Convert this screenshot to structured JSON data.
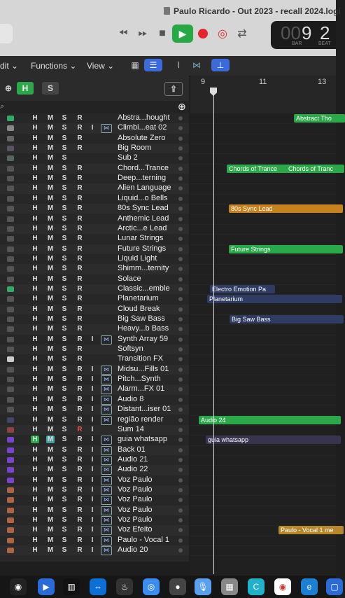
{
  "window": {
    "title": "Paulo Ricardo - Out 2023 - recall 2024.logi"
  },
  "lcd": {
    "bar": "9",
    "beat": "2",
    "bar_ghost": "00",
    "bar_label": "BAR",
    "beat_label": "BEAT"
  },
  "menus": {
    "edit": "dit",
    "functions": "Functions",
    "view": "View"
  },
  "header_buttons": {
    "h": "H",
    "s": "S"
  },
  "ruler": {
    "bars": [
      "9",
      "11",
      "13"
    ]
  },
  "tracks": [
    {
      "name": "Abstra...hought",
      "h": "H",
      "m": "M",
      "s": "S",
      "r": "R",
      "i": "",
      "flex": false,
      "icon_color": "#3a6"
    },
    {
      "name": "Climbi...eat 02",
      "h": "H",
      "m": "M",
      "s": "S",
      "r": "R",
      "i": "I",
      "flex": true,
      "icon_color": "#888"
    },
    {
      "name": "Absolute Zero",
      "h": "H",
      "m": "M",
      "s": "S",
      "r": "R",
      "i": "",
      "flex": false,
      "icon_color": "#666"
    },
    {
      "name": "Big Room",
      "h": "H",
      "m": "M",
      "s": "S",
      "r": "R",
      "i": "",
      "flex": false,
      "icon_color": "#556"
    },
    {
      "name": "Sub 2",
      "h": "H",
      "m": "M",
      "s": "S",
      "r": "",
      "i": "",
      "flex": false,
      "icon_color": "#566"
    },
    {
      "name": "Chord...Trance",
      "h": "H",
      "m": "M",
      "s": "S",
      "r": "R",
      "i": "",
      "flex": false,
      "icon_color": "#555"
    },
    {
      "name": "Deep...terning",
      "h": "H",
      "m": "M",
      "s": "S",
      "r": "R",
      "i": "",
      "flex": false,
      "icon_color": "#555"
    },
    {
      "name": "Alien Language",
      "h": "H",
      "m": "M",
      "s": "S",
      "r": "R",
      "i": "",
      "flex": false,
      "icon_color": "#555"
    },
    {
      "name": "Liquid...o Bells",
      "h": "H",
      "m": "M",
      "s": "S",
      "r": "R",
      "i": "",
      "flex": false,
      "icon_color": "#555"
    },
    {
      "name": "80s Sync Lead",
      "h": "H",
      "m": "M",
      "s": "S",
      "r": "R",
      "i": "",
      "flex": false,
      "icon_color": "#555"
    },
    {
      "name": "Anthemic Lead",
      "h": "H",
      "m": "M",
      "s": "S",
      "r": "R",
      "i": "",
      "flex": false,
      "icon_color": "#555"
    },
    {
      "name": "Arctic...e Lead",
      "h": "H",
      "m": "M",
      "s": "S",
      "r": "R",
      "i": "",
      "flex": false,
      "icon_color": "#555"
    },
    {
      "name": "Lunar Strings",
      "h": "H",
      "m": "M",
      "s": "S",
      "r": "R",
      "i": "",
      "flex": false,
      "icon_color": "#555"
    },
    {
      "name": "Future Strings",
      "h": "H",
      "m": "M",
      "s": "S",
      "r": "R",
      "i": "",
      "flex": false,
      "icon_color": "#555"
    },
    {
      "name": "Liquid Light",
      "h": "H",
      "m": "M",
      "s": "S",
      "r": "R",
      "i": "",
      "flex": false,
      "icon_color": "#555"
    },
    {
      "name": "Shimm...ternity",
      "h": "H",
      "m": "M",
      "s": "S",
      "r": "R",
      "i": "",
      "flex": false,
      "icon_color": "#555"
    },
    {
      "name": "Solace",
      "h": "H",
      "m": "M",
      "s": "S",
      "r": "R",
      "i": "",
      "flex": false,
      "icon_color": "#555"
    },
    {
      "name": "Classic...emble",
      "h": "H",
      "m": "M",
      "s": "S",
      "r": "R",
      "i": "",
      "flex": false,
      "icon_color": "#3a6"
    },
    {
      "name": "Planetarium",
      "h": "H",
      "m": "M",
      "s": "S",
      "r": "R",
      "i": "",
      "flex": false,
      "icon_color": "#555"
    },
    {
      "name": "Cloud Break",
      "h": "H",
      "m": "M",
      "s": "S",
      "r": "R",
      "i": "",
      "flex": false,
      "icon_color": "#555"
    },
    {
      "name": "Big Saw Bass",
      "h": "H",
      "m": "M",
      "s": "S",
      "r": "R",
      "i": "",
      "flex": false,
      "icon_color": "#555"
    },
    {
      "name": "Heavy...b Bass",
      "h": "H",
      "m": "M",
      "s": "S",
      "r": "R",
      "i": "",
      "flex": false,
      "icon_color": "#555"
    },
    {
      "name": "Synth Array 59",
      "h": "H",
      "m": "M",
      "s": "S",
      "r": "R",
      "i": "I",
      "flex": true,
      "icon_color": "#555"
    },
    {
      "name": "Softsyn",
      "h": "H",
      "m": "M",
      "s": "S",
      "r": "R",
      "i": "",
      "flex": false,
      "icon_color": "#555"
    },
    {
      "name": "Transition FX",
      "h": "H",
      "m": "M",
      "s": "S",
      "r": "R",
      "i": "",
      "flex": false,
      "icon_color": "#ccc"
    },
    {
      "name": "Midsu...Fills 01",
      "h": "H",
      "m": "M",
      "s": "S",
      "r": "R",
      "i": "I",
      "flex": true,
      "icon_color": "#555"
    },
    {
      "name": "Pitch...Synth",
      "h": "H",
      "m": "M",
      "s": "S",
      "r": "R",
      "i": "I",
      "flex": true,
      "icon_color": "#555"
    },
    {
      "name": "Alarm...FX 01",
      "h": "H",
      "m": "M",
      "s": "S",
      "r": "R",
      "i": "I",
      "flex": true,
      "icon_color": "#555"
    },
    {
      "name": "Audio 8",
      "h": "H",
      "m": "M",
      "s": "S",
      "r": "R",
      "i": "I",
      "flex": true,
      "icon_color": "#555"
    },
    {
      "name": "Distant...iser 01",
      "h": "H",
      "m": "M",
      "s": "S",
      "r": "R",
      "i": "I",
      "flex": true,
      "icon_color": "#555"
    },
    {
      "name": "região render",
      "h": "H",
      "m": "M",
      "s": "S",
      "r": "R",
      "i": "I",
      "flex": true,
      "icon_color": "#446"
    },
    {
      "name": "Sum 14",
      "h": "H",
      "m": "M",
      "s": "S",
      "r": "R",
      "i": "I",
      "flex": false,
      "icon_color": "#844"
    },
    {
      "name": "guia whatsapp",
      "h": "H",
      "m": "M",
      "s": "S",
      "r": "R",
      "i": "I",
      "flex": true,
      "icon_color": "#74c",
      "highlight": true
    },
    {
      "name": "Back 01",
      "h": "H",
      "m": "M",
      "s": "S",
      "r": "R",
      "i": "I",
      "flex": true,
      "icon_color": "#74c"
    },
    {
      "name": "Audio 21",
      "h": "H",
      "m": "M",
      "s": "S",
      "r": "R",
      "i": "I",
      "flex": true,
      "icon_color": "#74c"
    },
    {
      "name": "Audio 22",
      "h": "H",
      "m": "M",
      "s": "S",
      "r": "R",
      "i": "I",
      "flex": true,
      "icon_color": "#74c"
    },
    {
      "name": "Voz Paulo",
      "h": "H",
      "m": "M",
      "s": "S",
      "r": "R",
      "i": "I",
      "flex": true,
      "icon_color": "#74c"
    },
    {
      "name": "Voz Paulo",
      "h": "H",
      "m": "M",
      "s": "S",
      "r": "R",
      "i": "I",
      "flex": true,
      "icon_color": "#a64"
    },
    {
      "name": "Voz Paulo",
      "h": "H",
      "m": "M",
      "s": "S",
      "r": "R",
      "i": "I",
      "flex": true,
      "icon_color": "#a64"
    },
    {
      "name": "Voz Paulo",
      "h": "H",
      "m": "M",
      "s": "S",
      "r": "R",
      "i": "I",
      "flex": true,
      "icon_color": "#a64"
    },
    {
      "name": "Voz Paulo",
      "h": "H",
      "m": "M",
      "s": "S",
      "r": "R",
      "i": "I",
      "flex": true,
      "icon_color": "#a64"
    },
    {
      "name": "Voz Efeito",
      "h": "H",
      "m": "M",
      "s": "S",
      "r": "R",
      "i": "I",
      "flex": true,
      "icon_color": "#a64"
    },
    {
      "name": "Paulo - Vocal 1",
      "h": "H",
      "m": "M",
      "s": "S",
      "r": "R",
      "i": "I",
      "flex": true,
      "icon_color": "#a64"
    },
    {
      "name": "Audio 20",
      "h": "H",
      "m": "M",
      "s": "S",
      "r": "R",
      "i": "I",
      "flex": true,
      "icon_color": "#a64"
    }
  ],
  "regions": [
    {
      "label": "Abstract Tho",
      "color": "#2aa84a"
    },
    {
      "label": "Chords of Trance",
      "color": "#2aa84a"
    },
    {
      "label": "Chords of Tranc",
      "color": "#2aa84a"
    },
    {
      "label": "80s Sync Lead",
      "color": "#c5821f"
    },
    {
      "label": "Future Strings",
      "color": "#2aa84a"
    },
    {
      "label": "Electro Emotion Pa",
      "color": "#2f3b63"
    },
    {
      "label": "Planetarium",
      "color": "#2f3b63"
    },
    {
      "label": "Big Saw Bass",
      "color": "#2f3b63"
    },
    {
      "label": "Audio 24",
      "color": "#2aa84a"
    },
    {
      "label": "guia whatsapp",
      "color": "#3a3350"
    },
    {
      "label": "Paulo - Vocal 1 me",
      "color": "#b7882a"
    }
  ]
}
